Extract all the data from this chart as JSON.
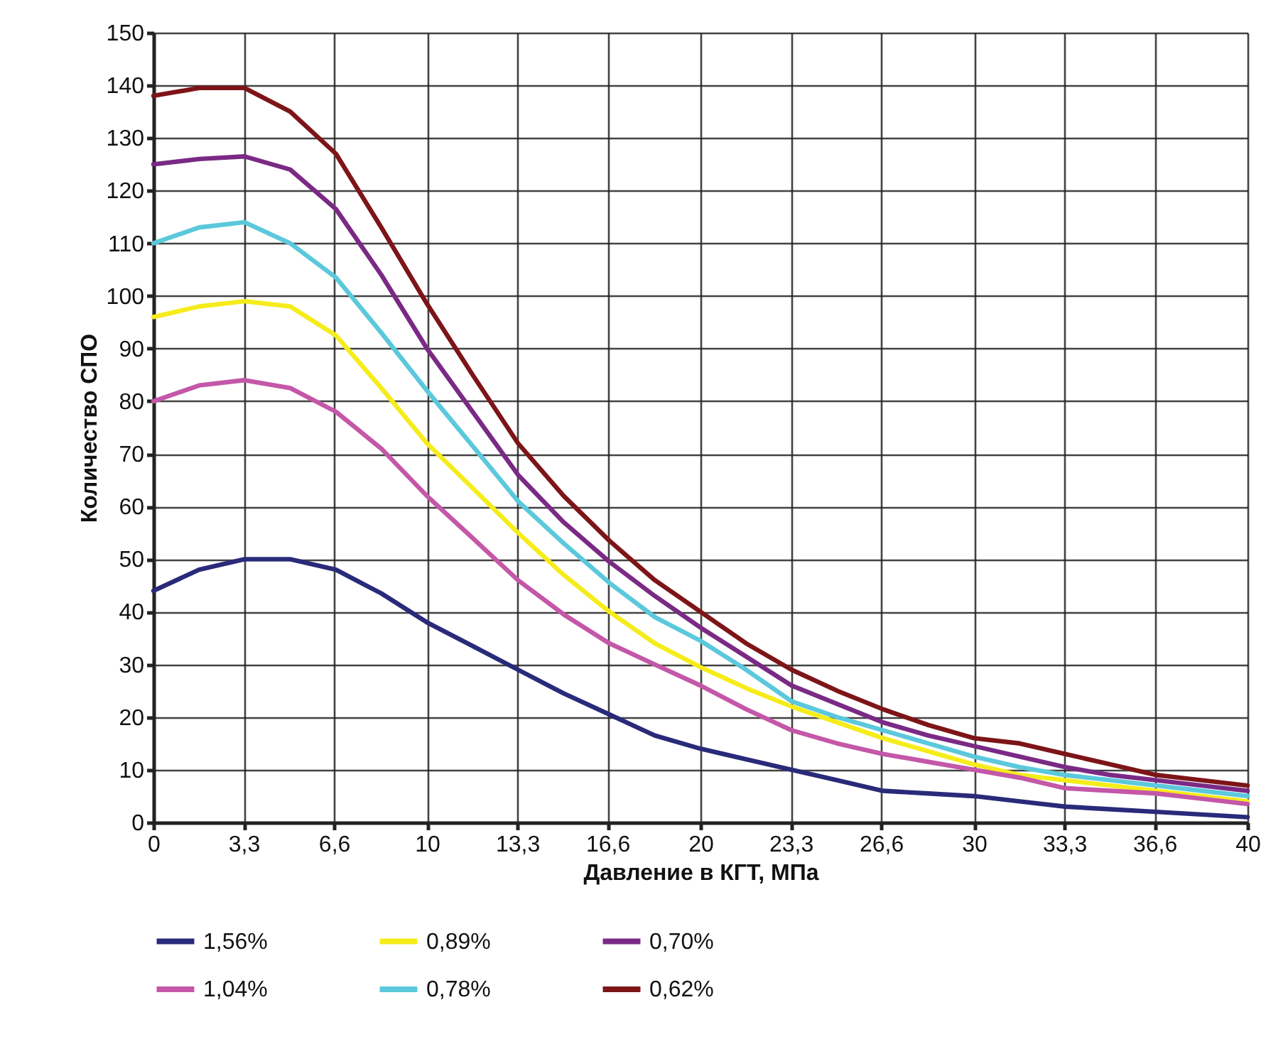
{
  "chart_data": {
    "type": "line",
    "xlabel": "Давление в КГТ, МПа",
    "ylabel": "Количество СПО",
    "x": [
      0,
      1.67,
      3.33,
      5,
      6.67,
      8.33,
      10,
      11.67,
      13.33,
      15,
      16.67,
      18.33,
      20,
      21.67,
      23.33,
      25,
      26.67,
      28.33,
      30,
      31.67,
      33.33,
      35,
      36.67,
      38.33,
      40
    ],
    "series": [
      {
        "name": "1,56%",
        "color": "#2a2a7a",
        "values": [
          44,
          48,
          50,
          50,
          48,
          43.5,
          38,
          33.5,
          29,
          24.5,
          20.5,
          16.5,
          14,
          12,
          10,
          8,
          6,
          5.5,
          5,
          4,
          3,
          2.5,
          2,
          1.5,
          1
        ]
      },
      {
        "name": "0,89%",
        "color": "#f5ec1a",
        "values": [
          96,
          98,
          99,
          98,
          92.5,
          82.5,
          72,
          63.5,
          55,
          47,
          40,
          34,
          29.5,
          25.5,
          22,
          19,
          16,
          13.5,
          11,
          9,
          8,
          7,
          6,
          5,
          4
        ]
      },
      {
        "name": "0,70%",
        "color": "#7a2a85",
        "values": [
          125,
          126,
          126.5,
          124,
          116.5,
          104,
          90,
          78,
          66,
          57,
          49.5,
          43,
          37,
          31.5,
          26,
          22.5,
          19,
          16.5,
          14.5,
          12.5,
          10.5,
          9,
          8,
          7,
          6
        ]
      },
      {
        "name": "1,04%",
        "color": "#c457a8",
        "values": [
          80,
          83,
          84,
          82.5,
          78,
          71,
          62,
          54,
          46,
          39.5,
          34,
          30,
          26,
          21.5,
          17.5,
          15,
          13,
          11.5,
          10,
          8.5,
          6.5,
          6,
          5.5,
          4.5,
          3.5
        ]
      },
      {
        "name": "0,78%",
        "color": "#5bc8dc",
        "values": [
          110,
          113,
          114,
          110,
          103.5,
          93,
          82,
          71.5,
          61,
          53,
          45.5,
          39,
          34.5,
          29,
          23,
          20,
          17.5,
          15,
          12.5,
          10.5,
          9,
          8,
          7,
          6,
          5
        ]
      },
      {
        "name": "0,62%",
        "color": "#7d1518",
        "values": [
          138,
          139.5,
          139.5,
          135,
          127,
          113,
          98.5,
          85,
          72,
          62,
          53.5,
          46,
          40,
          34,
          29,
          25,
          21.5,
          18.5,
          16,
          15,
          13,
          11,
          9,
          8,
          7
        ]
      }
    ],
    "xlim": [
      0,
      40
    ],
    "xticks": [
      0,
      {
        "value": 3.3,
        "label": "3,3"
      },
      {
        "value": 6.6,
        "label": "6,6"
      },
      10,
      {
        "value": 13.3,
        "label": "13,3"
      },
      {
        "value": 16.6,
        "label": "16,6"
      },
      20,
      {
        "value": 23.3,
        "label": "23,3"
      },
      {
        "value": 26.6,
        "label": "26,6"
      },
      30,
      {
        "value": 33.3,
        "label": "33,3"
      },
      {
        "value": 36.6,
        "label": "36,6"
      },
      40
    ],
    "ylim": [
      0,
      150
    ],
    "yticks": [
      0,
      10,
      20,
      30,
      40,
      50,
      60,
      70,
      80,
      90,
      100,
      110,
      120,
      130,
      140,
      150
    ],
    "grid": true,
    "legend": "bottom",
    "marker": "none",
    "line_style": "solid"
  }
}
